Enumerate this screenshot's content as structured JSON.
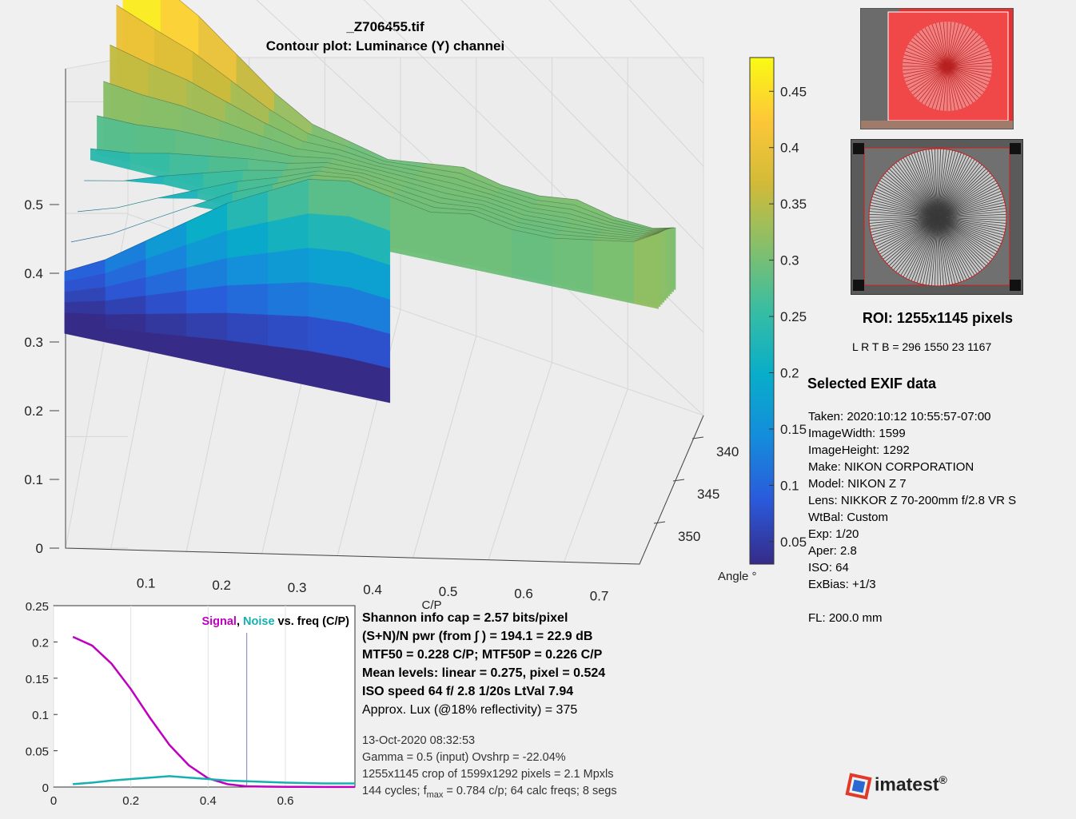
{
  "header": {
    "filename": "_Z706455.tif",
    "subtitle": "Contour plot:  Luminance (Y) channel"
  },
  "chart_data": [
    {
      "type": "surface",
      "title": "_Z706455.tif",
      "subtitle": "Contour plot:  Luminance (Y) channel",
      "xlabel": "C/P",
      "ylabel": "Angle °",
      "x_ticks": [
        "0.1",
        "0.2",
        "0.3",
        "0.4",
        "0.5",
        "0.6",
        "0.7"
      ],
      "y_ticks": [
        "340",
        "345",
        "350"
      ],
      "z_ticks": [
        "0",
        "0.1",
        "0.2",
        "0.3",
        "0.4",
        "0.5"
      ],
      "zlim": [
        0,
        0.5
      ],
      "colorbar": {
        "ticks": [
          "0.05",
          "0.1",
          "0.15",
          "0.2",
          "0.25",
          "0.3",
          "0.35",
          "0.4",
          "0.45"
        ],
        "range": [
          0.03,
          0.48
        ],
        "colormap": "parula"
      },
      "x": [
        0.05,
        0.1,
        0.15,
        0.2,
        0.25,
        0.3,
        0.35,
        0.4,
        0.45,
        0.5,
        0.55,
        0.6,
        0.65,
        0.7,
        0.75,
        0.78
      ],
      "z_front": [
        0.09,
        0.12,
        0.16,
        0.2,
        0.24,
        0.27,
        0.3,
        0.31,
        0.3,
        0.29,
        0.3,
        0.29,
        0.29,
        0.3,
        0.31,
        0.33
      ],
      "z_back": [
        0.48,
        0.45,
        0.42,
        0.38,
        0.34,
        0.31,
        0.3,
        0.29,
        0.3,
        0.31,
        0.3,
        0.3,
        0.31,
        0.3,
        0.3,
        0.31
      ]
    },
    {
      "type": "line",
      "title": "Signal, Noise vs. freq (C/P)",
      "x_ticks": [
        "0",
        "0.2",
        "0.4",
        "0.6"
      ],
      "y_ticks": [
        "0",
        "0.05",
        "0.1",
        "0.15",
        "0.2",
        "0.25"
      ],
      "xlim": [
        0,
        0.78
      ],
      "ylim": [
        0,
        0.25
      ],
      "marker_x": 0.5,
      "series": [
        {
          "name": "Signal",
          "color": "#c000c0",
          "x": [
            0.05,
            0.1,
            0.15,
            0.2,
            0.25,
            0.3,
            0.35,
            0.4,
            0.45,
            0.5,
            0.55,
            0.6,
            0.7,
            0.78
          ],
          "y": [
            0.207,
            0.195,
            0.17,
            0.135,
            0.095,
            0.058,
            0.03,
            0.012,
            0.004,
            0.001,
            0.0005,
            0.0003,
            0.0002,
            0.0002
          ]
        },
        {
          "name": "Noise",
          "color": "#17b0b0",
          "x": [
            0.05,
            0.1,
            0.15,
            0.2,
            0.25,
            0.3,
            0.35,
            0.4,
            0.45,
            0.5,
            0.55,
            0.6,
            0.7,
            0.78
          ],
          "y": [
            0.004,
            0.006,
            0.009,
            0.011,
            0.013,
            0.015,
            0.013,
            0.011,
            0.009,
            0.008,
            0.007,
            0.006,
            0.005,
            0.005
          ]
        }
      ]
    }
  ],
  "legend": {
    "signal": "Signal",
    "sep": ", ",
    "noise": "Noise",
    "rest": " vs. freq (C/P)"
  },
  "stats": {
    "shannon": "Shannon info cap =  2.57 bits/pixel",
    "snr": "(S+N)/N pwr (from ∫ ) = 194.1 = 22.9 dB",
    "mtf": "MTF50 = 0.228 C/P;  MTF50P = 0.226 C/P",
    "mean": "Mean levels:  linear = 0.275,  pixel = 0.524",
    "iso": "ISO speed  64   f/ 2.8    1/20s   LtVal 7.94",
    "lux": "Approx. Lux (@18% reflectivity) = 375",
    "date": "13-Oct-2020 08:32:53",
    "gamma": "Gamma = 0.5 (input)  Ovshrp = -22.04%",
    "crop": "1255x1145 crop of 1599x1292 pixels = 2.1 Mpxls",
    "cycles_a": "144 cycles; f",
    "cycles_sub": "max",
    "cycles_b": " = 0.784 c/p;  64 calc freqs;  8 segs"
  },
  "roi": {
    "title": "ROI:  1255x1145 pixels",
    "coords": "L R  T B = 296 1550  23 1167"
  },
  "exif": {
    "title": "Selected EXIF data",
    "taken": "Taken: 2020:10:12 10:55:57-07:00",
    "width": "ImageWidth:  1599",
    "height": "ImageHeight:  1292",
    "make": "Make:  NIKON CORPORATION",
    "model": "Model: NIKON Z 7",
    "lens": "Lens:  NIKKOR Z 70-200mm f/2.8 VR S",
    "wtbal": "WtBal:  Custom",
    "exp": "Exp:   1/20",
    "aper": "Aper:  2.8",
    "iso": "ISO:   64",
    "exbias": "ExBias:  +1/3",
    "fl": "FL:  200.0 mm"
  },
  "logo": {
    "text": "imatest",
    "reg": "®"
  }
}
